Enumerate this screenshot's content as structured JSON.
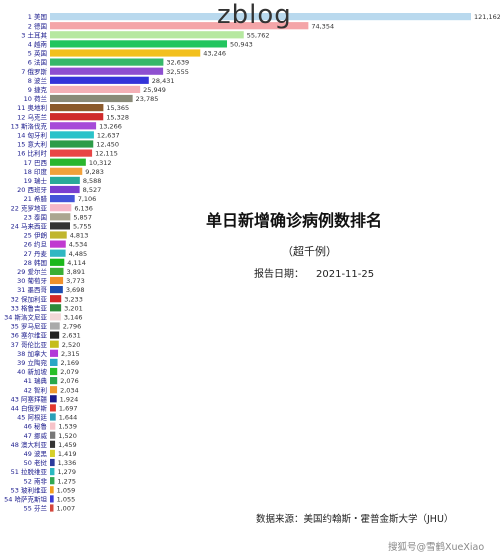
{
  "watermark": "zblog",
  "chart_data": {
    "type": "bar",
    "orientation": "horizontal",
    "title": "单日新增确诊病例数排名",
    "subtitle": "（超千例）",
    "date_label": "报告日期：",
    "date": "2021-11-25",
    "source": "数据来源：美国约翰斯・霍普金斯大学（JHU）",
    "credit": "搜狐号@雪鹤XueXiao",
    "value_format": "thousands",
    "xlim": [
      0,
      121162
    ],
    "grid": false,
    "legend": "none",
    "categories": [
      "美国",
      "德国",
      "土耳其",
      "越南",
      "英国",
      "法国",
      "俄罗斯",
      "波兰",
      "捷克",
      "荷兰",
      "奥地利",
      "乌克兰",
      "斯洛伐克",
      "匈牙利",
      "意大利",
      "比利时",
      "巴西",
      "印度",
      "瑞士",
      "西班牙",
      "希腊",
      "克罗地亚",
      "泰国",
      "马来西亚",
      "伊朗",
      "约旦",
      "丹麦",
      "韩国",
      "爱尔兰",
      "葡萄牙",
      "墨西哥",
      "保加利亚",
      "格鲁吉亚",
      "斯洛文尼亚",
      "罗马尼亚",
      "塞尔维亚",
      "哥伦比亚",
      "加拿大",
      "立陶宛",
      "新加坡",
      "瑞典",
      "智利",
      "阿塞拜疆",
      "白俄罗斯",
      "阿根廷",
      "秘鲁",
      "挪威",
      "澳大利亚",
      "波黑",
      "老挝",
      "拉脱维亚",
      "南非",
      "玻利维亚",
      "哈萨克斯坦",
      "芬兰"
    ],
    "values": [
      121162,
      74354,
      55762,
      50943,
      43246,
      32639,
      32555,
      28431,
      25949,
      23785,
      15365,
      15328,
      13266,
      12637,
      12450,
      12115,
      10312,
      9283,
      8588,
      8527,
      7106,
      6136,
      5857,
      5755,
      4813,
      4534,
      4485,
      4114,
      3891,
      3773,
      3698,
      3233,
      3201,
      3146,
      2796,
      2631,
      2520,
      2315,
      2169,
      2079,
      2076,
      2034,
      1924,
      1697,
      1644,
      1539,
      1520,
      1459,
      1419,
      1336,
      1279,
      1275,
      1059,
      1055,
      1007
    ],
    "colors": [
      "#b9d9ee",
      "#f4a5a8",
      "#b6e8a0",
      "#22c55e",
      "#f2c01e",
      "#36b86a",
      "#8e4fd0",
      "#3434d9",
      "#f4b0b6",
      "#8a8a78",
      "#8b5a2b",
      "#cf2a2a",
      "#a64ad8",
      "#2ac2c9",
      "#2e9c48",
      "#e84545",
      "#29b62d",
      "#f3a13a",
      "#2aaa99",
      "#7a3fd0",
      "#4454d8",
      "#f7b7c7",
      "#aba690",
      "#333333",
      "#c0b62e",
      "#c03ad0",
      "#2fb7c2",
      "#1bb81b",
      "#3aaf34",
      "#f0912a",
      "#1d4db0",
      "#d42828",
      "#2e8b3a",
      "#f2d8d8",
      "#aaaaaa",
      "#222222",
      "#c5bd1a",
      "#b23ad8",
      "#2aa7c4",
      "#28c028",
      "#2aa84a",
      "#f09a2e",
      "#1a1a8c",
      "#e3382f",
      "#2ba0b8",
      "#f7c3c9",
      "#777777",
      "#333333",
      "#d6d02a",
      "#2c3b9c",
      "#2bb9c0",
      "#32a852",
      "#f39d1c",
      "#3b3bd6",
      "#d4463c"
    ]
  }
}
